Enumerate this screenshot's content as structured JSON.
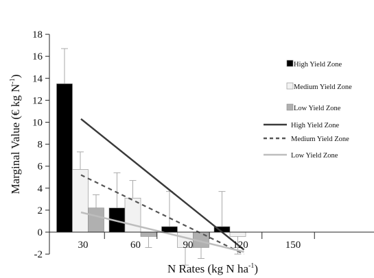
{
  "chart_data": {
    "type": "bar",
    "categories": [
      "30",
      "60",
      "90",
      "120",
      "150"
    ],
    "xlabel_main": "N Rates (kg N ha",
    "xlabel_sup": "-1",
    "xlabel_end": ")",
    "ylabel_main": "Marginal Value (€ kg N",
    "ylabel_sup": "-1",
    "ylabel_end": ")",
    "ylim": [
      -2,
      18
    ],
    "yticks": [
      "-2",
      "0",
      "2",
      "4",
      "6",
      "8",
      "10",
      "12",
      "14",
      "16",
      "18"
    ],
    "grid": false,
    "legend_position": "right",
    "series": [
      {
        "name": "High Yield Zone",
        "values": [
          13.5,
          2.2,
          0.5,
          0.5,
          null
        ],
        "errors": [
          3.2,
          3.2,
          3.2,
          3.2,
          null
        ],
        "color": "#000000"
      },
      {
        "name": "Medium Yield Zone",
        "values": [
          5.7,
          3.1,
          -1.4,
          -0.4,
          null
        ],
        "errors": [
          1.6,
          1.6,
          1.6,
          1.6,
          null
        ],
        "color": "#f2f2f2"
      },
      {
        "name": "Low Yield Zone",
        "values": [
          2.2,
          -0.4,
          -1.4,
          null,
          null
        ],
        "errors": [
          1.2,
          1.0,
          1.0,
          null,
          null
        ],
        "color": "#b0b0b0"
      }
    ],
    "trend_lines": [
      {
        "name": "High Yield Zone",
        "style": "solid",
        "color": "#3a3a3a",
        "from": [
          30,
          10.3
        ],
        "to": [
          120,
          -1.6
        ]
      },
      {
        "name": "Medium Yield Zone",
        "style": "dashed",
        "color": "#555555",
        "from": [
          30,
          5.2
        ],
        "to": [
          120,
          -2.0
        ]
      },
      {
        "name": "Low Yield Zone",
        "style": "solid",
        "color": "#bdbdbd",
        "from": [
          30,
          1.8
        ],
        "to": [
          120,
          -1.8
        ]
      }
    ],
    "legend": [
      {
        "label": "High Yield Zone",
        "kind": "bar",
        "color": "#000000"
      },
      {
        "label": "Medium Yield Zone",
        "kind": "bar",
        "color": "#f2f2f2"
      },
      {
        "label": "Low Yield Zone",
        "kind": "bar",
        "color": "#b0b0b0"
      },
      {
        "label": "High Yield Zone",
        "kind": "line",
        "style": "solid",
        "color": "#3a3a3a"
      },
      {
        "label": "Medium Yield Zone",
        "kind": "line",
        "style": "dashed",
        "color": "#555555"
      },
      {
        "label": "Low Yield Zone",
        "kind": "line",
        "style": "solid",
        "color": "#bdbdbd"
      }
    ]
  }
}
